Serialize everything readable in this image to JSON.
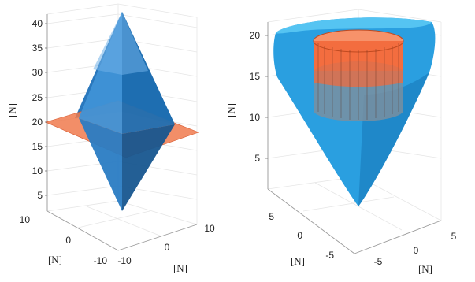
{
  "chart_data": [
    {
      "type": "surface3d",
      "title": "",
      "xlabel": "[N]",
      "ylabel": "[N]",
      "zlabel": "[N]",
      "xticks": [
        "-10",
        "0",
        "10"
      ],
      "yticks": [
        "10",
        "0",
        "-10"
      ],
      "zticks": [
        "5",
        "10",
        "15",
        "20",
        "25",
        "30",
        "35",
        "40"
      ],
      "zlim": [
        0,
        43
      ],
      "grid": true,
      "surfaces": [
        {
          "shape": "double pyramid (bipyramid)",
          "color": "#1f6fb2",
          "z_range": [
            2,
            42
          ],
          "waist_z": 19
        },
        {
          "shape": "horizontal plane",
          "color": "#f07a4e",
          "z": 19
        }
      ]
    },
    {
      "type": "surface3d",
      "title": "",
      "xlabel": "[N]",
      "ylabel": "[N]",
      "zlabel": "[N]",
      "xticks": [
        "-5",
        "0",
        "5"
      ],
      "yticks": [
        "5",
        "0",
        "-5"
      ],
      "zticks": [
        "5",
        "10",
        "15",
        "20"
      ],
      "zlim": [
        0,
        21
      ],
      "grid": true,
      "surfaces": [
        {
          "shape": "rounded triangular cone",
          "color": "#2a9fe0",
          "z_range": [
            0,
            20
          ]
        },
        {
          "shape": "cylinder",
          "color": "#f26a3c",
          "z_range": [
            11,
            20
          ]
        }
      ]
    }
  ]
}
